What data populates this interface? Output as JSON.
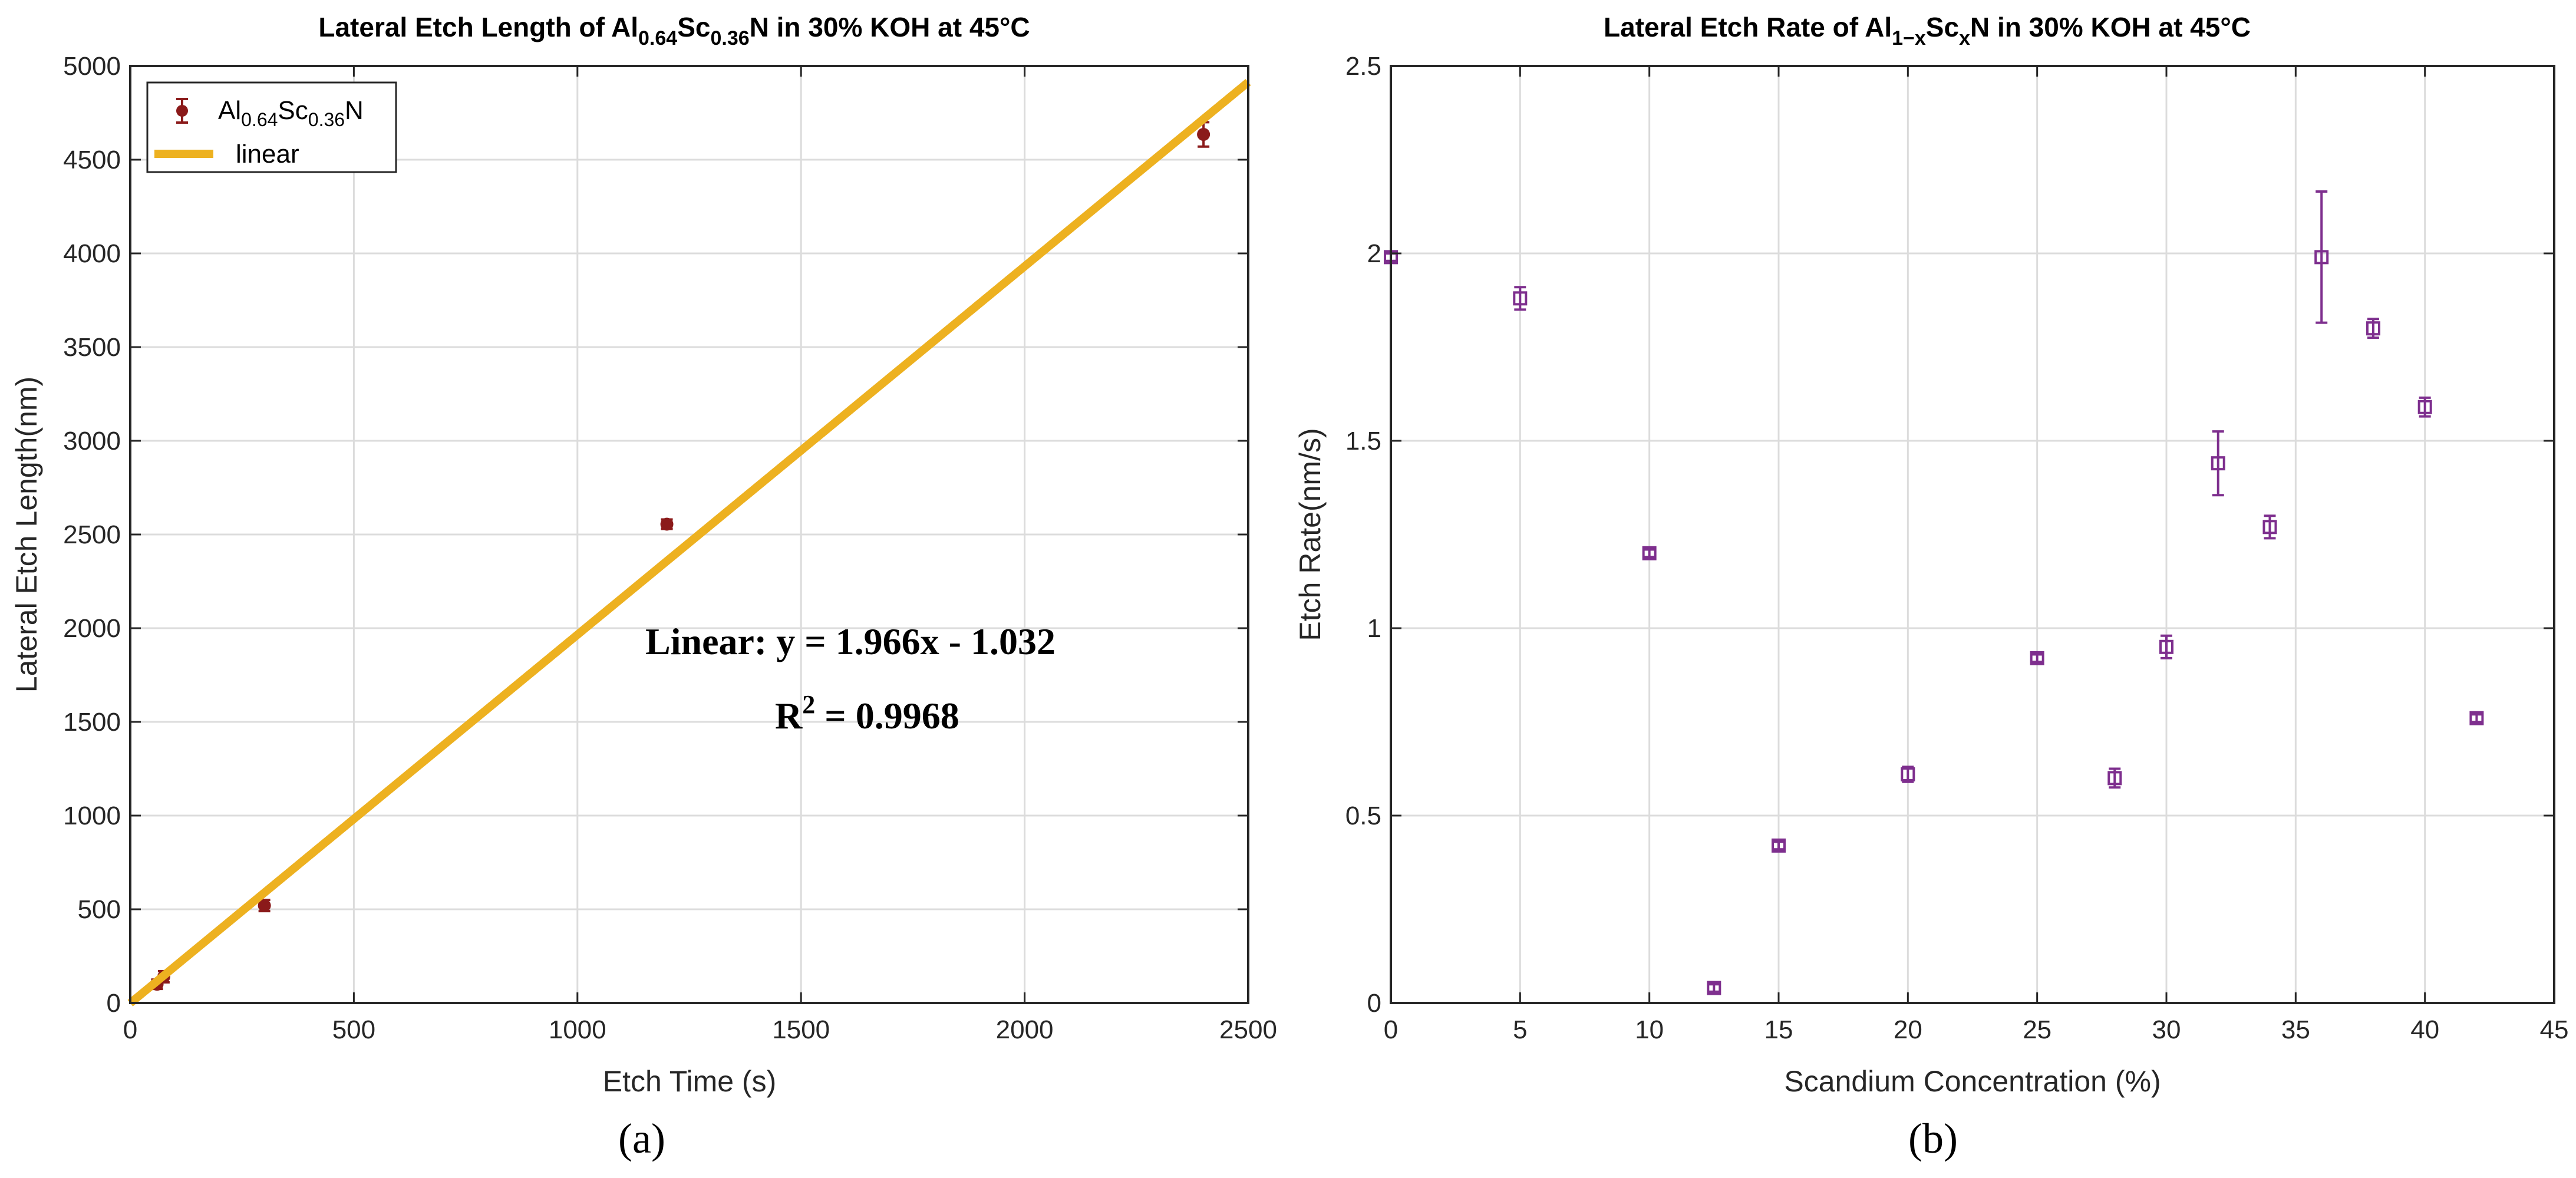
{
  "chart_data": [
    {
      "type": "scatter",
      "panel_label": "(a)",
      "title": "Lateral Etch Length of Al0.64Sc0.36N in 30% KOH at 45°C",
      "title_parts": {
        "prefix": "Lateral Etch Length of Al",
        "sub1": "0.64",
        "mid": "Sc",
        "sub2": "0.36",
        "suffix": "N in 30% KOH at 45°C"
      },
      "xlabel": "Etch Time (s)",
      "ylabel": "Lateral Etch Length(nm)",
      "xlim": [
        0,
        2500
      ],
      "ylim": [
        0,
        5000
      ],
      "xticks": [
        0,
        500,
        1000,
        1500,
        2000,
        2500
      ],
      "yticks": [
        0,
        500,
        1000,
        1500,
        2000,
        2500,
        3000,
        3500,
        4000,
        4500,
        5000
      ],
      "grid": true,
      "legend": {
        "position": "top-left",
        "entries": [
          {
            "label": "Al0.64Sc0.36N",
            "parts": {
              "a": "Al",
              "s1": "0.64",
              "b": "Sc",
              "s2": "0.36",
              "c": "N"
            }
          },
          {
            "label": "linear"
          }
        ]
      },
      "series": [
        {
          "name": "Al0.64Sc0.36N",
          "color": "#8b1a1a",
          "x": [
            60,
            75,
            300,
            1200,
            2400
          ],
          "y": [
            100,
            140,
            520,
            2555,
            4635
          ],
          "err": [
            25,
            30,
            30,
            25,
            65
          ]
        },
        {
          "name": "linear",
          "color": "#edb120",
          "slope": 1.966,
          "intercept": -1.032,
          "x_range": [
            0,
            2500
          ]
        }
      ],
      "annotation": {
        "equation": "Linear:  y = 1.966x - 1.032",
        "r2_prefix": "R",
        "r2_sup": "2",
        "r2_suffix": " = 0.9968"
      }
    },
    {
      "type": "scatter",
      "panel_label": "(b)",
      "title": "Lateral Etch Rate of Al1−xScxN in 30% KOH at 45°C",
      "title_parts": {
        "prefix": "Lateral Etch Rate of Al",
        "sub1": "1−x",
        "mid": "Sc",
        "sub2": "x",
        "suffix": "N in 30% KOH at 45°C"
      },
      "xlabel": "Scandium Concentration (%)",
      "ylabel": "Etch Rate(nm/s)",
      "xlim": [
        0,
        45
      ],
      "ylim": [
        0,
        2.5
      ],
      "xticks": [
        0,
        5,
        10,
        15,
        20,
        25,
        30,
        35,
        40,
        45
      ],
      "yticks": [
        0,
        0.5,
        1,
        1.5,
        2,
        2.5
      ],
      "grid": true,
      "series": [
        {
          "name": "Etch Rate",
          "color": "#7e2f8e",
          "x": [
            0,
            5,
            10,
            12.5,
            15,
            20,
            25,
            28,
            30,
            32,
            34,
            36,
            38,
            40,
            42
          ],
          "y": [
            1.99,
            1.88,
            1.2,
            0.04,
            0.42,
            0.61,
            0.92,
            0.6,
            0.95,
            1.44,
            1.27,
            1.99,
            1.8,
            1.59,
            0.76
          ],
          "err": [
            0.01,
            0.03,
            0.01,
            0.01,
            0.01,
            0.02,
            0.01,
            0.025,
            0.03,
            0.085,
            0.03,
            0.175,
            0.025,
            0.025,
            0.01
          ]
        }
      ]
    }
  ]
}
